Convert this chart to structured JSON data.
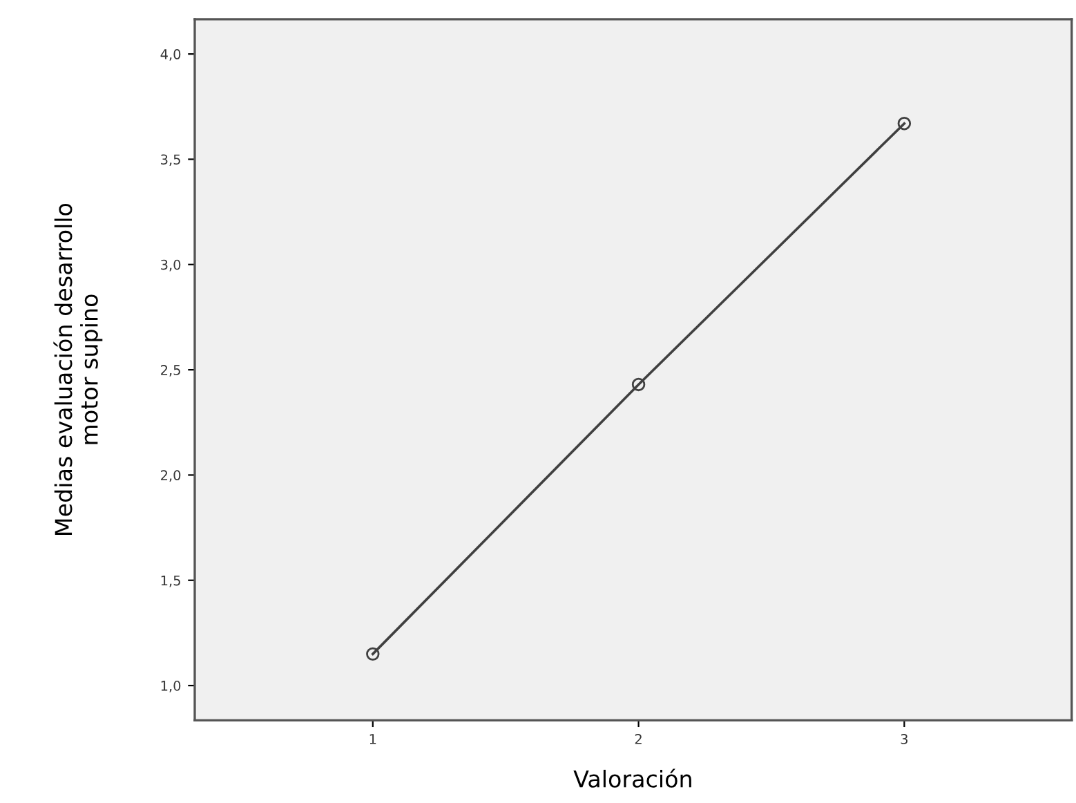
{
  "chart_data": {
    "type": "line",
    "xlabel": "Valoración",
    "ylabel": "Medias evaluación desarrollo\nmotor supino",
    "x": [
      1,
      2,
      3
    ],
    "series": [
      {
        "color": "#404040",
        "values": [
          1.15,
          2.43,
          3.67
        ]
      }
    ],
    "marker": "circle",
    "line_style": "solid",
    "grid": false,
    "legend": false,
    "xlim": [
      0.33,
      3.63
    ],
    "xticks": [
      1,
      2,
      3
    ],
    "ylim": [
      0.835,
      4.165
    ],
    "yticks": [
      {
        "value": 1.0,
        "label": "1,0"
      },
      {
        "value": 1.5,
        "label": "1,5"
      },
      {
        "value": 2.0,
        "label": "2,0"
      },
      {
        "value": 2.5,
        "label": "2,5"
      },
      {
        "value": 3.0,
        "label": "3,0"
      },
      {
        "value": 3.5,
        "label": "3,5"
      },
      {
        "value": 4.0,
        "label": "4,0"
      }
    ]
  }
}
